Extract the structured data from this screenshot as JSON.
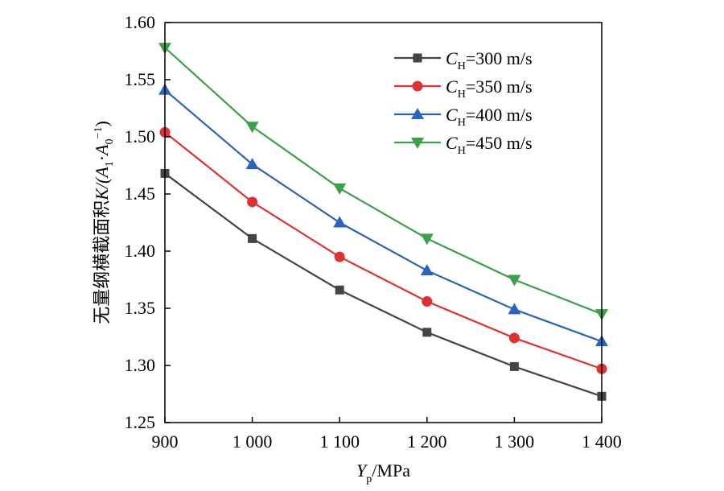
{
  "chart_data": {
    "type": "line",
    "xlabel": "Y_p/MPa",
    "xlabel_main": "Y",
    "xlabel_sub": "p",
    "xlabel_unit": "/MPa",
    "ylabel": "无量纲横截面积K/(A_1·A_0^-1)",
    "ylabel_main": "无量纲横截面积",
    "ylabel_parts": {
      "K": "K/(",
      "A1": "A",
      "sub1": "1",
      "dot": "·",
      "A0": "A",
      "sub0": "0",
      "sup": "−1",
      "close": ")"
    },
    "x": [
      900,
      1000,
      1100,
      1200,
      1300,
      1400
    ],
    "x_tick_labels": [
      "900",
      "1 000",
      "1 100",
      "1 200",
      "1 300",
      "1 400"
    ],
    "xlim": [
      900,
      1400
    ],
    "ylim": [
      1.25,
      1.6
    ],
    "y_ticks": [
      1.25,
      1.3,
      1.35,
      1.4,
      1.45,
      1.5,
      1.55,
      1.6
    ],
    "y_tick_labels": [
      "1.25",
      "1.30",
      "1.35",
      "1.40",
      "1.45",
      "1.50",
      "1.55",
      "1.60"
    ],
    "grid": false,
    "legend_position": "top-right",
    "series": [
      {
        "name": "C_H=300 m/s",
        "legend_main": "C",
        "legend_sub": "H",
        "legend_rest": "=300 m/s",
        "marker": "square",
        "color": "#444444",
        "values": [
          1.468,
          1.411,
          1.366,
          1.329,
          1.299,
          1.273
        ]
      },
      {
        "name": "C_H=350 m/s",
        "legend_main": "C",
        "legend_sub": "H",
        "legend_rest": "=350 m/s",
        "marker": "circle",
        "color": "#e03030",
        "values": [
          1.504,
          1.443,
          1.395,
          1.356,
          1.324,
          1.297
        ]
      },
      {
        "name": "C_H=400 m/s",
        "legend_main": "C",
        "legend_sub": "H",
        "legend_rest": "=400 m/s",
        "marker": "triangle-up",
        "color": "#2a63c0",
        "values": [
          1.541,
          1.476,
          1.425,
          1.383,
          1.349,
          1.321
        ]
      },
      {
        "name": "C_H=450 m/s",
        "legend_main": "C",
        "legend_sub": "H",
        "legend_rest": "=450 m/s",
        "marker": "triangle-down",
        "color": "#3aa04a",
        "values": [
          1.578,
          1.509,
          1.455,
          1.411,
          1.375,
          1.345
        ]
      }
    ]
  }
}
